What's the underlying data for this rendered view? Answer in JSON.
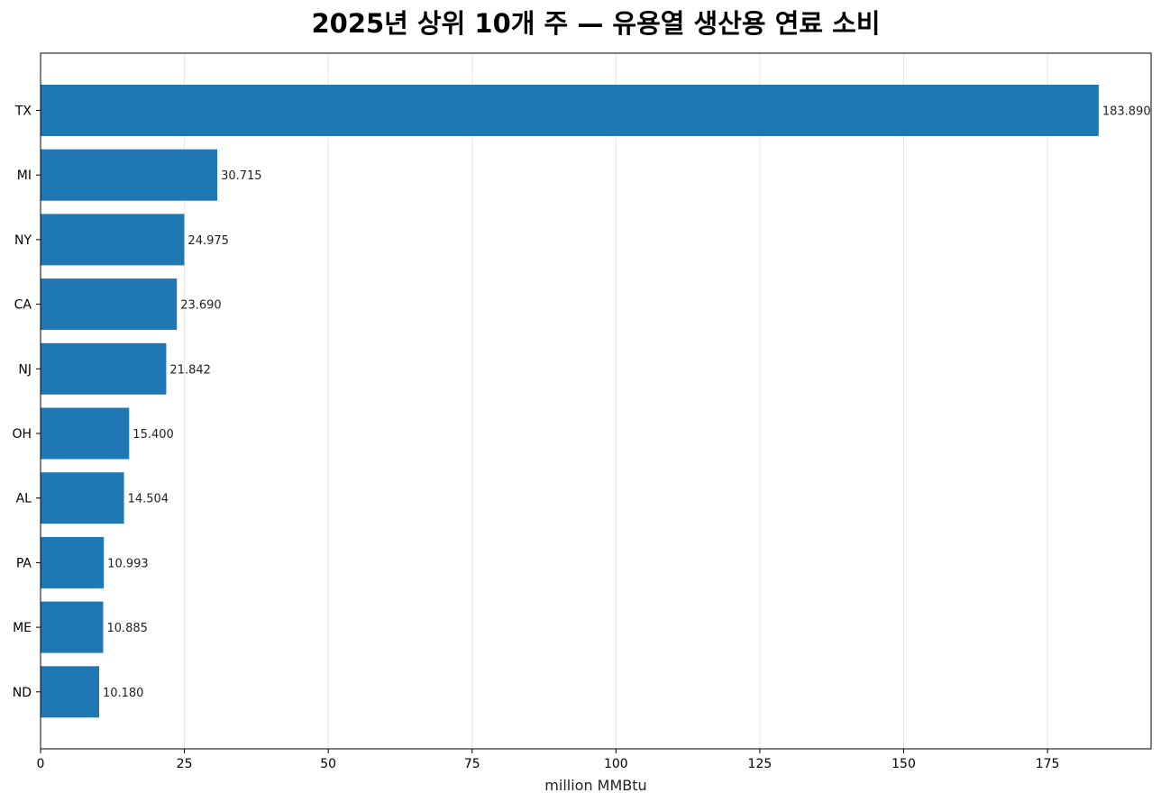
{
  "chart_data": {
    "type": "bar",
    "orientation": "horizontal",
    "title": "2025년 상위 10개 주 — 유용열 생산용 연료 소비",
    "xlabel": "million MMBtu",
    "ylabel": "",
    "xlim": [
      0,
      193
    ],
    "xticks": [
      0,
      25,
      50,
      75,
      100,
      125,
      150,
      175
    ],
    "grid": "vertical",
    "bar_color": "#1f77b4",
    "categories": [
      "TX",
      "MI",
      "NY",
      "CA",
      "NJ",
      "OH",
      "AL",
      "PA",
      "ME",
      "ND"
    ],
    "values": [
      183.89,
      30.715,
      24.975,
      23.69,
      21.842,
      15.4,
      14.504,
      10.993,
      10.885,
      10.18
    ],
    "value_labels": [
      "183.890",
      "30.715",
      "24.975",
      "23.690",
      "21.842",
      "15.400",
      "14.504",
      "10.993",
      "10.885",
      "10.180"
    ]
  }
}
